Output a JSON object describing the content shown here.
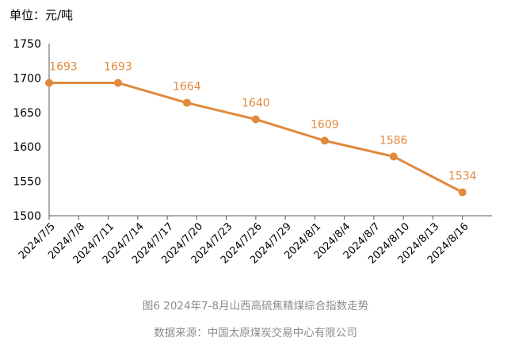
{
  "unit_label": "单位：元/吨",
  "caption": "图6  2024年7-8月山西高硫焦精煤综合指数走势",
  "source": "数据来源：中国太原煤炭交易中心有限公司",
  "chart_data": {
    "type": "line",
    "title": "",
    "xlabel": "",
    "ylabel": "",
    "categories": [
      "2024/7/5",
      "2024/7/8",
      "2024/7/11",
      "2024/7/14",
      "2024/7/17",
      "2024/7/20",
      "2024/7/23",
      "2024/7/26",
      "2024/7/29",
      "2024/8/1",
      "2024/8/4",
      "2024/8/7",
      "2024/8/10",
      "2024/8/13",
      "2024/8/16"
    ],
    "points": [
      {
        "x": "2024/7/5",
        "y": 1693
      },
      {
        "x": "2024/7/12",
        "y": 1693
      },
      {
        "x": "2024/7/19",
        "y": 1664
      },
      {
        "x": "2024/7/26",
        "y": 1640
      },
      {
        "x": "2024/8/2",
        "y": 1609
      },
      {
        "x": "2024/8/9",
        "y": 1586
      },
      {
        "x": "2024/8/16",
        "y": 1534
      }
    ],
    "ylim": [
      1500,
      1750
    ],
    "yticks": [
      1500,
      1550,
      1600,
      1650,
      1700,
      1750
    ],
    "grid": false,
    "legend": "none",
    "series_color": "#e08a3c",
    "axis_color": "#595959"
  }
}
